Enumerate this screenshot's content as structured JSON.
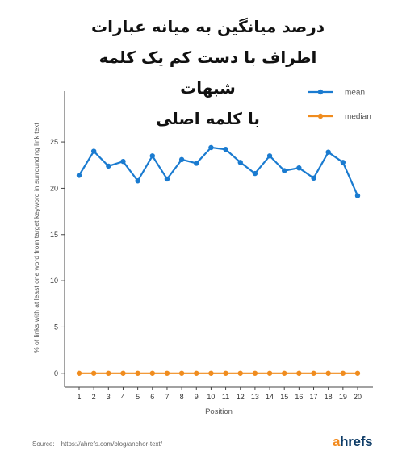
{
  "title_lines": [
    "درصد میانگین به میانه عبارات",
    "اطراف با دست کم یک کلمه شبهات",
    "با کلمه اصلی"
  ],
  "chart_data": {
    "type": "line",
    "x": [
      1,
      2,
      3,
      4,
      5,
      6,
      7,
      8,
      9,
      10,
      11,
      12,
      13,
      14,
      15,
      16,
      17,
      18,
      19,
      20
    ],
    "series": [
      {
        "name": "mean",
        "color": "#1a7bd0",
        "values": [
          21.4,
          24.0,
          22.4,
          22.9,
          20.8,
          23.5,
          21.0,
          23.1,
          22.7,
          24.4,
          24.2,
          22.8,
          21.6,
          23.5,
          21.9,
          22.2,
          21.1,
          23.9,
          22.8,
          19.2
        ]
      },
      {
        "name": "median",
        "color": "#f08c1e",
        "values": [
          0,
          0,
          0,
          0,
          0,
          0,
          0,
          0,
          0,
          0,
          0,
          0,
          0,
          0,
          0,
          0,
          0,
          0,
          0,
          0
        ]
      }
    ],
    "xlabel": "Position",
    "ylabel": "% of links with at least one word from target keyword in surrounding link text",
    "yticks": [
      0,
      5,
      10,
      15,
      20,
      25
    ],
    "ylim": [
      -1.5,
      30.5
    ],
    "grid": false,
    "legend": "top-right"
  },
  "source": {
    "label": "Source:",
    "url": "https://ahrefs.com/blog/anchor-text/"
  },
  "logo": {
    "first": "a",
    "rest": "hrefs"
  }
}
